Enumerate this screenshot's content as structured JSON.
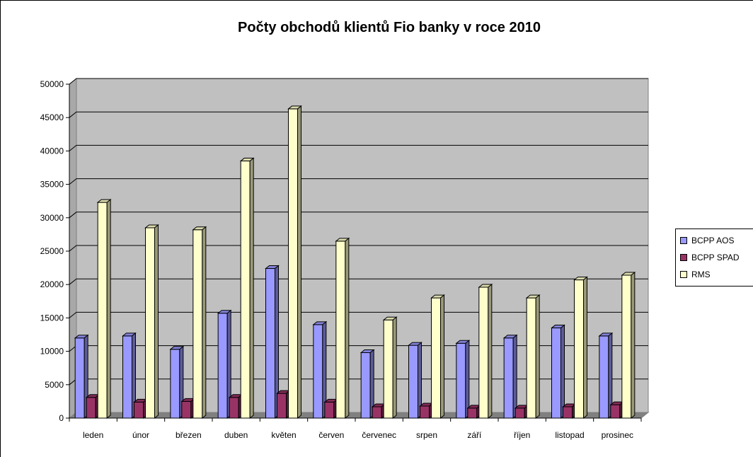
{
  "chart_data": {
    "type": "bar",
    "title": "Počty obchodů klientů Fio banky v roce 2010",
    "xlabel": "",
    "ylabel": "",
    "ylim": [
      0,
      50000
    ],
    "yticks": [
      0,
      5000,
      10000,
      15000,
      20000,
      25000,
      30000,
      35000,
      40000,
      45000,
      50000
    ],
    "grid": true,
    "legend_position": "right",
    "categories": [
      "leden",
      "únor",
      "březen",
      "duben",
      "květen",
      "červen",
      "červenec",
      "srpen",
      "září",
      "říjen",
      "listopad",
      "prosinec"
    ],
    "series": [
      {
        "name": "BCPP AOS",
        "color": "#9999ff",
        "values": [
          12000,
          12300,
          10300,
          15700,
          22400,
          14000,
          9800,
          10900,
          11200,
          12000,
          13500,
          12300
        ]
      },
      {
        "name": "BCPP SPAD",
        "color": "#993366",
        "values": [
          3100,
          2400,
          2500,
          3100,
          3700,
          2400,
          1700,
          1800,
          1500,
          1500,
          1700,
          2000
        ]
      },
      {
        "name": "RMS",
        "color": "#ffffcc",
        "values": [
          32300,
          28500,
          28200,
          38500,
          46300,
          26500,
          14700,
          18000,
          19600,
          18000,
          20700,
          21400
        ]
      }
    ]
  },
  "colors": {
    "plot_wall": "#c0c0c0",
    "floor": "#808080",
    "grid": "#000000"
  }
}
